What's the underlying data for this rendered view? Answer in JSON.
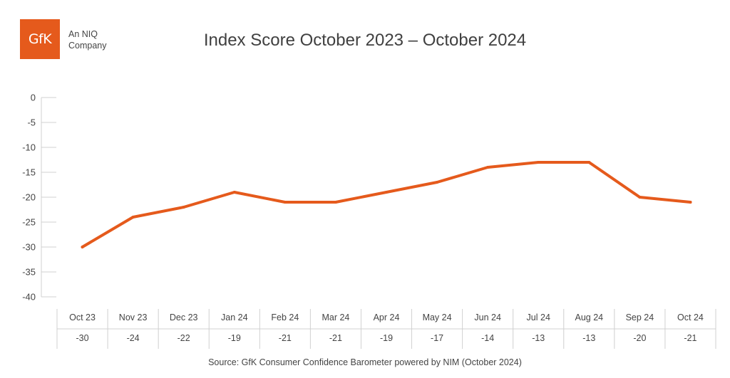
{
  "logo": {
    "text": "GfK",
    "tagline_line1": "An NIQ",
    "tagline_line2": "Company",
    "color": "#e55a1c"
  },
  "chart_data": {
    "type": "line",
    "title": "Index Score October 2023 – October 2024",
    "categories": [
      "Oct 23",
      "Nov 23",
      "Dec 23",
      "Jan 24",
      "Feb 24",
      "Mar 24",
      "Apr 24",
      "May 24",
      "Jun 24",
      "Jul 24",
      "Aug 24",
      "Sep 24",
      "Oct 24"
    ],
    "series": [
      {
        "values": [
          -30,
          -24,
          -22,
          -19,
          -21,
          -21,
          -19,
          -17,
          -14,
          -13,
          -13,
          -20,
          -21
        ],
        "color": "#e55a1c"
      }
    ],
    "value_labels": [
      "-30",
      "-24",
      "-22",
      "-19",
      "-21",
      "-21",
      "-19",
      "-17",
      "-14",
      "-13",
      "-13",
      "-20",
      "-21"
    ],
    "y_ticks": [
      "0",
      "-5",
      "-10",
      "-15",
      "-20",
      "-25",
      "-30",
      "-35",
      "-40"
    ],
    "ylim": [
      -40,
      0
    ],
    "grid": false,
    "legend": "none",
    "data_table": true
  },
  "source": "Source: GfK Consumer Confidence Barometer powered by NIM (October 2024)"
}
